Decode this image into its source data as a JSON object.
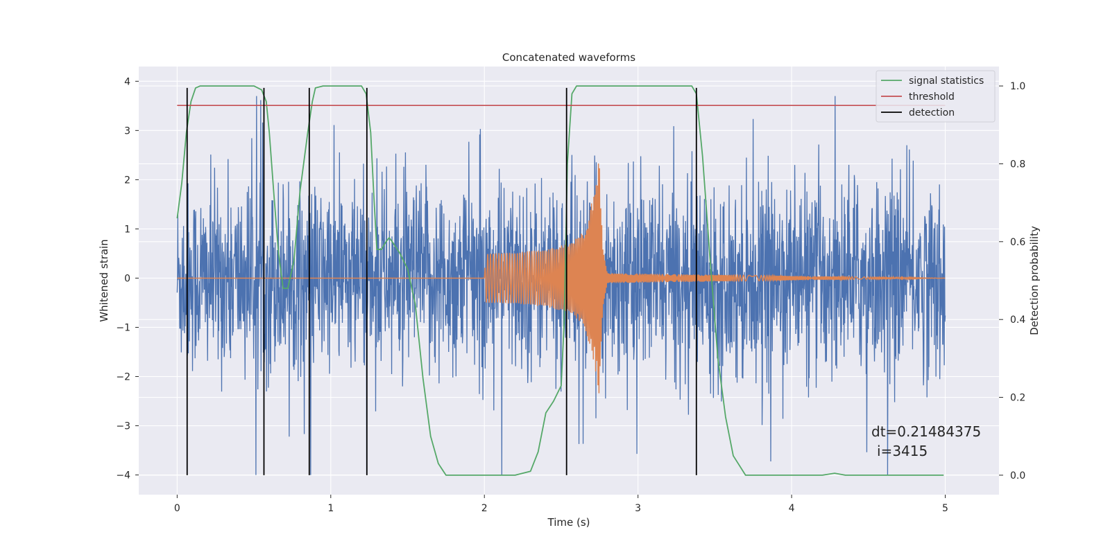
{
  "chart_data": {
    "type": "line",
    "title": "Concatenated waveforms",
    "xlabel": "Time (s)",
    "ylabel": "Whitened strain",
    "y2label": "Detection probability",
    "xlim": [
      -0.25,
      5.35
    ],
    "ylim": [
      -4.4,
      4.3
    ],
    "y2lim": [
      -0.05,
      1.05
    ],
    "xticks": [
      0,
      1,
      2,
      3,
      4,
      5
    ],
    "xtick_labels": [
      "0",
      "1",
      "2",
      "3",
      "4",
      "5"
    ],
    "yticks": [
      -4,
      -3,
      -2,
      -1,
      0,
      1,
      2,
      3,
      4
    ],
    "ytick_labels": [
      "−4",
      "−3",
      "−2",
      "−1",
      "0",
      "1",
      "2",
      "3",
      "4"
    ],
    "y2ticks": [
      0.0,
      0.2,
      0.4,
      0.6,
      0.8,
      1.0
    ],
    "y2tick_labels": [
      "0.0",
      "0.2",
      "0.4",
      "0.6",
      "0.8",
      "1.0"
    ],
    "grid": true,
    "legend_position": "top-right",
    "legend": [
      "signal statistics",
      "threshold",
      "detection"
    ],
    "annotation": "dt=0.21484375",
    "annotation2": "i=3415",
    "colors": {
      "background": "#eaeaf2",
      "grid": "#ffffff",
      "noise": "#4c72b0",
      "waveform": "#dd8452",
      "signal_statistics": "#55a868",
      "threshold": "#c44e52",
      "detection": "#000000"
    },
    "series": [
      {
        "name": "noise",
        "axis": "left",
        "description_level": "dense whitened noise between about -3 and +3 with sparse spikes",
        "duration": [
          0,
          5
        ]
      },
      {
        "name": "waveform",
        "axis": "left",
        "envelope_x": [
          0.0,
          2.0,
          2.01,
          2.2,
          2.4,
          2.55,
          2.65,
          2.72,
          2.75,
          2.77,
          2.8,
          5.0
        ],
        "envelope_y": [
          0.0,
          0.0,
          0.5,
          0.52,
          0.58,
          0.7,
          0.95,
          1.8,
          2.5,
          0.6,
          0.1,
          0.0
        ]
      },
      {
        "name": "signal statistics",
        "axis": "right",
        "x": [
          0.0,
          0.03,
          0.06,
          0.09,
          0.12,
          0.15,
          0.2,
          0.5,
          0.55,
          0.58,
          0.6,
          0.63,
          0.66,
          0.69,
          0.72,
          0.76,
          0.8,
          0.85,
          0.88,
          0.9,
          0.95,
          1.2,
          1.23,
          1.26,
          1.28,
          1.3,
          1.33,
          1.36,
          1.38,
          1.4,
          1.45,
          1.5,
          1.55,
          1.6,
          1.65,
          1.7,
          1.75,
          1.9,
          2.2,
          2.3,
          2.35,
          2.4,
          2.45,
          2.5,
          2.52,
          2.54,
          2.57,
          2.6,
          2.65,
          3.35,
          3.38,
          3.42,
          3.47,
          3.52,
          3.57,
          3.62,
          3.7,
          4.2,
          4.28,
          4.35,
          4.99
        ],
        "y": [
          0.66,
          0.75,
          0.88,
          0.96,
          0.995,
          1.0,
          1.0,
          1.0,
          0.99,
          0.96,
          0.88,
          0.72,
          0.57,
          0.48,
          0.48,
          0.55,
          0.73,
          0.88,
          0.96,
          0.995,
          1.0,
          1.0,
          0.98,
          0.88,
          0.72,
          0.58,
          0.58,
          0.6,
          0.61,
          0.6,
          0.57,
          0.53,
          0.44,
          0.25,
          0.1,
          0.03,
          0.0,
          0.0,
          0.0,
          0.01,
          0.06,
          0.16,
          0.19,
          0.23,
          0.4,
          0.8,
          0.98,
          1.0,
          1.0,
          1.0,
          0.98,
          0.82,
          0.55,
          0.3,
          0.15,
          0.05,
          0.0,
          0.0,
          0.005,
          0.0,
          0.0
        ]
      },
      {
        "name": "threshold",
        "axis": "right",
        "x": [
          0.0,
          5.0
        ],
        "y": [
          0.95,
          0.95
        ]
      },
      {
        "name": "detection",
        "axis": "right",
        "x_positions": [
          0.065,
          0.565,
          0.86,
          1.235,
          2.535,
          3.38
        ],
        "y_range": [
          0.0,
          0.995
        ]
      }
    ]
  }
}
